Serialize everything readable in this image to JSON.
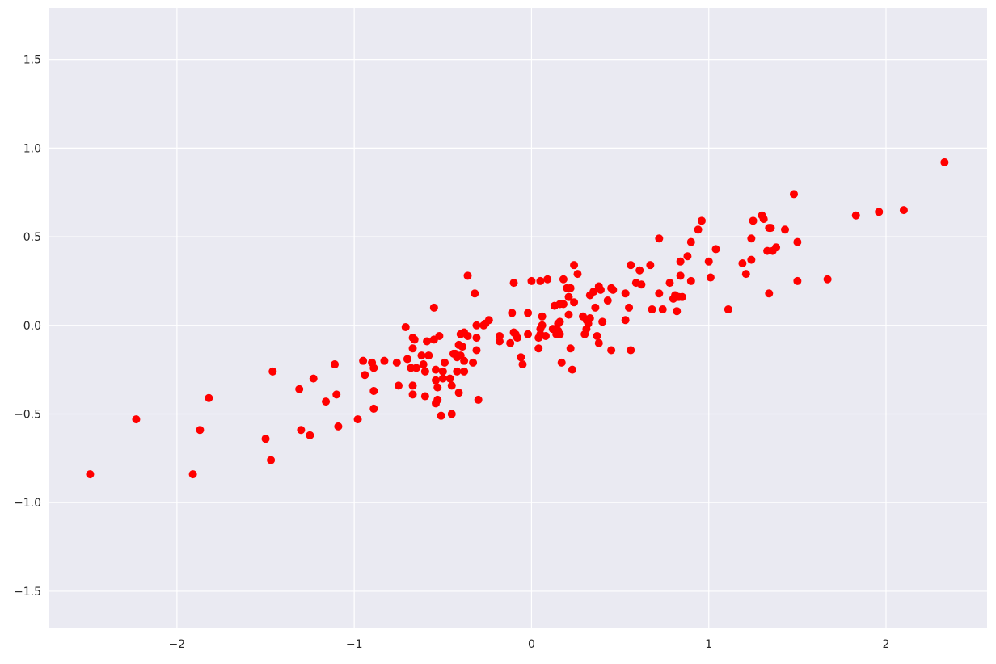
{
  "chart_data": {
    "type": "scatter",
    "color": "#ff0000",
    "grid": true,
    "xlim": [
      -2.72,
      2.57
    ],
    "ylim": [
      -1.71,
      1.79
    ],
    "xticks": [
      {
        "value": -2,
        "label": "−2"
      },
      {
        "value": -1,
        "label": "−1"
      },
      0,
      1,
      2
    ],
    "yticks": [
      {
        "value": -1.5,
        "label": "−1.5"
      },
      {
        "value": -1.0,
        "label": "−1.0"
      },
      {
        "value": -0.5,
        "label": "−0.5"
      },
      {
        "value": 0.0,
        "label": "0.0"
      },
      0.5,
      {
        "value": 1.0,
        "label": "1.0"
      },
      1.5
    ],
    "x": [
      -2.49,
      -2.23,
      -1.91,
      -1.87,
      -1.82,
      -1.5,
      -1.47,
      -1.46,
      -1.31,
      -1.3,
      -1.25,
      -1.23,
      -1.16,
      -1.11,
      -1.1,
      -1.09,
      -0.98,
      -0.95,
      -0.94,
      -0.9,
      -0.89,
      -0.89,
      -0.89,
      -0.83,
      -0.75,
      -0.76,
      -0.71,
      -0.7,
      -0.68,
      -0.67,
      -0.67,
      -0.67,
      -0.67,
      -0.66,
      -0.65,
      -0.62,
      -0.61,
      -0.6,
      -0.6,
      -0.59,
      -0.58,
      -0.55,
      -0.55,
      -0.54,
      -0.54,
      -0.54,
      -0.53,
      -0.53,
      -0.52,
      -0.51,
      -0.5,
      -0.5,
      -0.49,
      -0.46,
      -0.45,
      -0.45,
      -0.44,
      -0.43,
      -0.42,
      -0.42,
      -0.41,
      -0.41,
      -0.4,
      -0.4,
      -0.39,
      -0.38,
      -0.38,
      -0.38,
      -0.36,
      -0.36,
      -0.33,
      -0.32,
      -0.31,
      -0.31,
      -0.31,
      -0.3,
      -0.27,
      -0.26,
      -0.24,
      -0.18,
      -0.18,
      -0.12,
      -0.11,
      -0.1,
      -0.1,
      -0.09,
      -0.08,
      -0.06,
      -0.05,
      -0.02,
      -0.02,
      0.0,
      0.04,
      0.04,
      0.05,
      0.05,
      0.05,
      0.06,
      0.06,
      0.08,
      0.09,
      0.12,
      0.13,
      0.14,
      0.14,
      0.15,
      0.15,
      0.16,
      0.16,
      0.16,
      0.18,
      0.17,
      0.18,
      0.2,
      0.21,
      0.21,
      0.22,
      0.22,
      0.23,
      0.24,
      0.24,
      0.26,
      0.29,
      0.3,
      0.31,
      0.31,
      0.32,
      0.33,
      0.33,
      0.35,
      0.36,
      0.37,
      0.38,
      0.38,
      0.39,
      0.4,
      0.43,
      0.45,
      0.45,
      0.46,
      0.53,
      0.53,
      0.55,
      0.56,
      0.56,
      0.59,
      0.61,
      0.62,
      0.67,
      0.68,
      0.72,
      0.72,
      0.74,
      0.78,
      0.8,
      0.81,
      0.82,
      0.83,
      0.84,
      0.85,
      0.84,
      0.88,
      0.9,
      0.9,
      0.94,
      0.96,
      1.0,
      1.01,
      1.04,
      1.11,
      1.19,
      1.21,
      1.24,
      1.24,
      1.25,
      1.3,
      1.31,
      1.33,
      1.34,
      1.34,
      1.35,
      1.36,
      1.38,
      1.43,
      1.48,
      1.5,
      1.5,
      1.67,
      1.83,
      1.96,
      2.1,
      2.33
    ],
    "values": [
      -0.84,
      -0.53,
      -0.84,
      -0.59,
      -0.41,
      -0.64,
      -0.76,
      -0.26,
      -0.36,
      -0.59,
      -0.62,
      -0.3,
      -0.43,
      -0.22,
      -0.39,
      -0.57,
      -0.53,
      -0.2,
      -0.28,
      -0.21,
      -0.24,
      -0.37,
      -0.47,
      -0.2,
      -0.34,
      -0.21,
      -0.01,
      -0.19,
      -0.24,
      -0.39,
      -0.13,
      -0.34,
      -0.07,
      -0.08,
      -0.24,
      -0.17,
      -0.22,
      -0.26,
      -0.4,
      -0.09,
      -0.17,
      -0.08,
      0.1,
      -0.25,
      -0.31,
      -0.44,
      -0.35,
      -0.42,
      -0.06,
      -0.51,
      -0.3,
      -0.26,
      -0.21,
      -0.3,
      -0.5,
      -0.34,
      -0.16,
      -0.16,
      -0.18,
      -0.26,
      -0.38,
      -0.11,
      -0.05,
      -0.17,
      -0.12,
      -0.04,
      -0.2,
      -0.26,
      -0.06,
      0.28,
      -0.21,
      0.18,
      -0.07,
      -0.14,
      0.0,
      -0.42,
      0.0,
      0.01,
      0.03,
      -0.06,
      -0.09,
      -0.1,
      0.07,
      0.24,
      -0.04,
      -0.05,
      -0.07,
      -0.18,
      -0.22,
      0.07,
      -0.05,
      0.25,
      -0.13,
      -0.07,
      -0.02,
      0.25,
      -0.05,
      0.05,
      0.0,
      -0.06,
      0.26,
      -0.02,
      0.11,
      -0.03,
      -0.05,
      0.01,
      -0.03,
      0.02,
      -0.05,
      0.12,
      0.26,
      -0.21,
      0.12,
      0.21,
      0.16,
      0.06,
      -0.13,
      0.21,
      -0.25,
      0.13,
      0.34,
      0.29,
      0.05,
      -0.05,
      0.03,
      -0.02,
      0.01,
      0.17,
      0.04,
      0.19,
      0.1,
      -0.06,
      0.22,
      -0.1,
      0.2,
      0.02,
      0.14,
      0.21,
      -0.14,
      0.2,
      0.03,
      0.18,
      0.1,
      -0.14,
      0.34,
      0.24,
      0.31,
      0.23,
      0.34,
      0.09,
      0.18,
      0.49,
      0.09,
      0.24,
      0.15,
      0.17,
      0.08,
      0.16,
      0.36,
      0.16,
      0.28,
      0.39,
      0.25,
      0.47,
      0.54,
      0.59,
      0.36,
      0.27,
      0.43,
      0.09,
      0.35,
      0.29,
      0.37,
      0.49,
      0.59,
      0.62,
      0.6,
      0.42,
      0.55,
      0.18,
      0.55,
      0.42,
      0.44,
      0.54,
      0.74,
      0.25,
      0.47,
      0.26,
      0.62,
      0.64,
      0.65,
      0.92
    ]
  }
}
